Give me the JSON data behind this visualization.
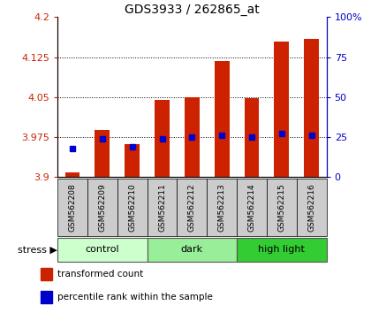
{
  "title": "GDS3933 / 262865_at",
  "samples": [
    "GSM562208",
    "GSM562209",
    "GSM562210",
    "GSM562211",
    "GSM562212",
    "GSM562213",
    "GSM562214",
    "GSM562215",
    "GSM562216"
  ],
  "transformed_counts": [
    3.908,
    3.988,
    3.962,
    4.045,
    4.05,
    4.118,
    4.048,
    4.155,
    4.16
  ],
  "percentile_ranks": [
    18,
    24,
    19,
    24,
    25,
    26,
    25,
    27,
    26
  ],
  "ylim_left": [
    3.9,
    4.2
  ],
  "ylim_right": [
    0,
    100
  ],
  "yticks_left": [
    3.9,
    3.975,
    4.05,
    4.125,
    4.2
  ],
  "yticks_right": [
    0,
    25,
    50,
    75,
    100
  ],
  "ytick_labels_left": [
    "3.9",
    "3.975",
    "4.05",
    "4.125",
    "4.2"
  ],
  "ytick_labels_right": [
    "0",
    "25",
    "50",
    "75",
    "100%"
  ],
  "groups": [
    {
      "label": "control",
      "indices": [
        0,
        1,
        2
      ],
      "color": "#ccffcc"
    },
    {
      "label": "dark",
      "indices": [
        3,
        4,
        5
      ],
      "color": "#99ee99"
    },
    {
      "label": "high light",
      "indices": [
        6,
        7,
        8
      ],
      "color": "#33cc33"
    }
  ],
  "bar_color": "#cc2200",
  "percentile_color": "#0000cc",
  "bar_width": 0.5,
  "bar_bottom": 3.9,
  "bg_color": "#ffffff",
  "plot_bg": "#ffffff",
  "tick_bg": "#cccccc",
  "stress_label": "stress",
  "legend_items": [
    {
      "label": "transformed count",
      "color": "#cc2200"
    },
    {
      "label": "percentile rank within the sample",
      "color": "#0000cc"
    }
  ]
}
